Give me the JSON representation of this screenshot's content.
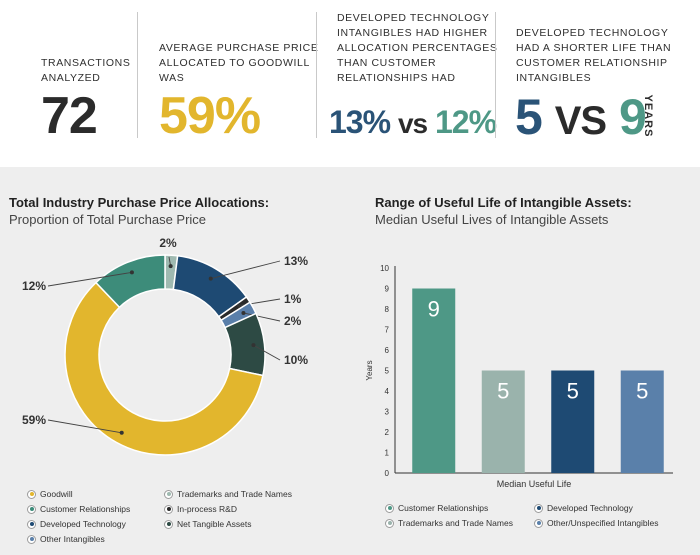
{
  "stats": {
    "s1": {
      "caption_l1": "TRANSACTIONS",
      "caption_l2": "ANALYZED",
      "value": "72"
    },
    "s2": {
      "caption_l1": "AVERAGE PURCHASE PRICE",
      "caption_l2": "ALLOCATED TO GOODWILL",
      "caption_l3": "WAS",
      "value": "59%"
    },
    "s3": {
      "caption_l1": "DEVELOPED TECHNOLOGY",
      "caption_l2": "INTANGIBLES HAD HIGHER",
      "caption_l3": "ALLOCATION PERCENTAGES",
      "caption_l4": "THAN CUSTOMER",
      "caption_l5": "RELATIONSHIPS HAD",
      "value_a": "13%",
      "vs": "vs",
      "value_b": "12%"
    },
    "s4": {
      "caption_l1": "DEVELOPED TECHNOLOGY",
      "caption_l2": "HAD A SHORTER LIFE THAN",
      "caption_l3": "CUSTOMER RELATIONSHIP",
      "caption_l4": "INTANGIBLES",
      "value_a": "5",
      "vs": "VS",
      "value_b": "9",
      "unit": "YEARS"
    }
  },
  "colors": {
    "goodwill": "#e2b62d",
    "customer": "#3d8c7a",
    "developed": "#1e4a73",
    "trademarks": "#9fbab1",
    "inprocess": "#2a2a2a",
    "net_tangible": "#2d4a44",
    "other": "#5a7faa",
    "dark_text": "#2b2b2b",
    "bar_customer": "#4e9886",
    "bar_trademarks": "#9ab3ac",
    "bar_developed": "#1e4a73",
    "bar_other": "#5a80aa"
  },
  "left_panel": {
    "title": "Total Industry Purchase Price Allocations:",
    "subtitle": "Proportion of Total Purchase Price",
    "legend": [
      {
        "label": "Goodwill",
        "color_key": "goodwill"
      },
      {
        "label": "Trademarks and Trade Names",
        "color_key": "trademarks"
      },
      {
        "label": "Customer Relationships",
        "color_key": "customer"
      },
      {
        "label": "In-process R&D",
        "color_key": "inprocess"
      },
      {
        "label": "Developed Technology",
        "color_key": "developed"
      },
      {
        "label": "Net Tangible Assets",
        "color_key": "net_tangible"
      },
      {
        "label": "Other Intangibles",
        "color_key": "other"
      }
    ]
  },
  "right_panel": {
    "title": "Range of Useful Life of Intangible Assets:",
    "subtitle": "Median Useful Lives of Intangible Assets",
    "legend": [
      {
        "label": "Customer Relationships",
        "color_key": "bar_customer"
      },
      {
        "label": "Developed Technology",
        "color_key": "bar_developed"
      },
      {
        "label": "Trademarks and Trade Names",
        "color_key": "bar_trademarks"
      },
      {
        "label": "Other/Unspecified Intangibles",
        "color_key": "bar_other"
      }
    ]
  },
  "chart_data": [
    {
      "type": "pie",
      "title": "Total Industry Purchase Price Allocations:",
      "subtitle": "Proportion of Total Purchase Price",
      "donut": true,
      "slices": [
        {
          "name": "Trademarks and Trade Names",
          "value": 2,
          "label": "2%",
          "color_key": "trademarks"
        },
        {
          "name": "Developed Technology",
          "value": 13,
          "label": "13%",
          "color_key": "developed"
        },
        {
          "name": "In-process R&D",
          "value": 1,
          "label": "1%",
          "color_key": "inprocess"
        },
        {
          "name": "Other Intangibles",
          "value": 2,
          "label": "2%",
          "color_key": "other"
        },
        {
          "name": "Net Tangible Assets",
          "value": 10,
          "label": "10%",
          "color_key": "net_tangible"
        },
        {
          "name": "Goodwill",
          "value": 59,
          "label": "59%",
          "color_key": "goodwill"
        },
        {
          "name": "Customer Relationships",
          "value": 12,
          "label": "12%",
          "color_key": "customer"
        }
      ]
    },
    {
      "type": "bar",
      "title": "Range of Useful Life of Intangible Assets:",
      "subtitle": "Median Useful Lives of Intangible Assets",
      "xlabel": "Median Useful Life",
      "ylabel": "Years",
      "ylim": [
        0,
        10
      ],
      "yticks": [
        0,
        1,
        2,
        3,
        4,
        5,
        6,
        7,
        8,
        9,
        10
      ],
      "categories": [
        "Customer Relationships",
        "Trademarks and Trade Names",
        "Developed Technology",
        "Other/Unspecified Intangibles"
      ],
      "values": [
        9,
        5,
        5,
        5
      ],
      "value_labels": [
        "9",
        "5",
        "5",
        "5"
      ],
      "color_keys": [
        "bar_customer",
        "bar_trademarks",
        "bar_developed",
        "bar_other"
      ],
      "grid": false
    }
  ]
}
